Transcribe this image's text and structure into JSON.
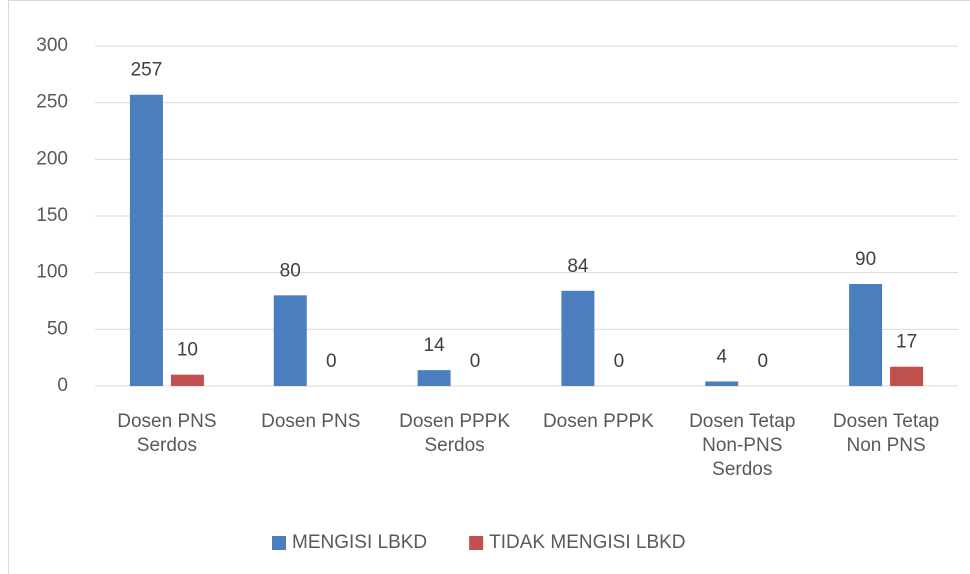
{
  "chart_data": {
    "type": "bar",
    "categories": [
      "Dosen PNS Serdos",
      "Dosen PNS",
      "Dosen PPPK Serdos",
      "Dosen PPPK",
      "Dosen Tetap Non-PNS Serdos",
      "Dosen Tetap Non PNS"
    ],
    "series": [
      {
        "name": "MENGISI LBKD",
        "color": "#4a7ebf",
        "values": [
          257,
          80,
          14,
          84,
          4,
          90
        ]
      },
      {
        "name": "TIDAK MENGISI LBKD",
        "color": "#c0504d",
        "values": [
          10,
          0,
          0,
          0,
          0,
          17
        ]
      }
    ],
    "ylim": [
      0,
      300
    ],
    "yticks": [
      0,
      50,
      100,
      150,
      200,
      250,
      300
    ],
    "grid": true,
    "legend": "bottom"
  }
}
